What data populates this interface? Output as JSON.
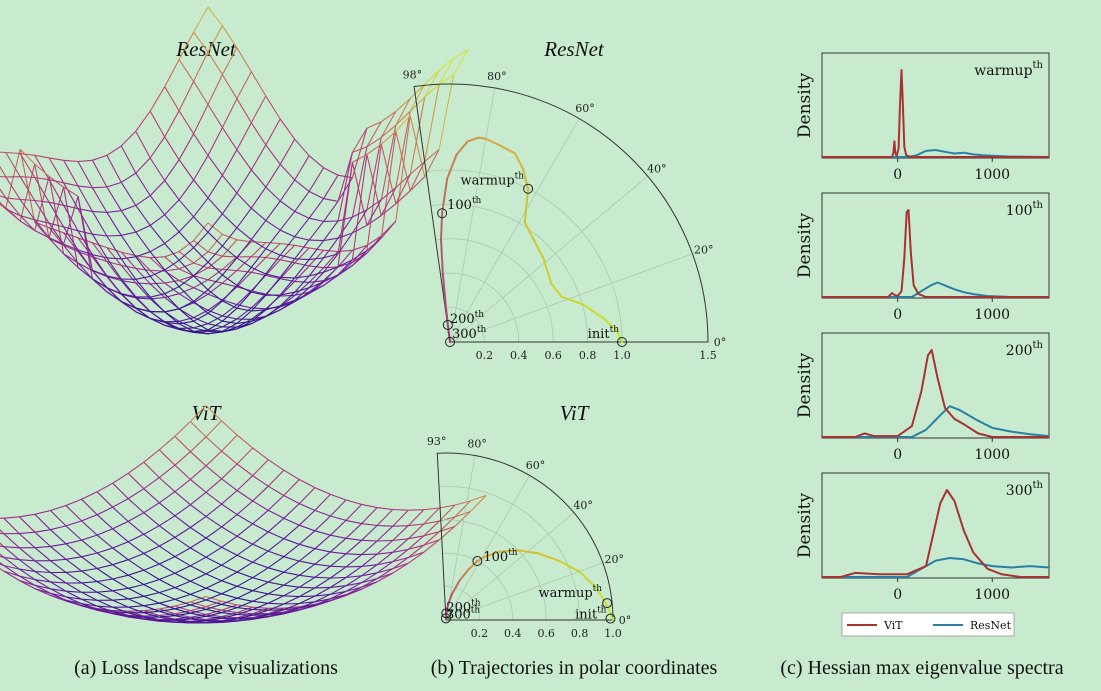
{
  "captions": {
    "a": "(a) Loss landscape visualizations",
    "b": "(b) Trajectories in polar coordinates",
    "c": "(c) Hessian max eigenvalue spectra"
  },
  "chart_data": [
    {
      "id": "landscape_resnet",
      "type": "surface",
      "title": "ResNet",
      "description_shape": "sharp, non-convex bowl with spikes"
    },
    {
      "id": "landscape_vit",
      "type": "surface",
      "title": "ViT",
      "description_shape": "smooth, convex bowl"
    },
    {
      "id": "polar_resnet",
      "type": "line",
      "subtype": "polar",
      "title": "ResNet",
      "theta_max_deg": 98,
      "r_max": 1.5,
      "angle_ticks": [
        "0°",
        "20°",
        "40°",
        "60°",
        "80°",
        "98°"
      ],
      "radial_ticks": [
        "0.2",
        "0.4",
        "0.6",
        "0.8",
        "1.0",
        "1.5"
      ],
      "trajectory": [
        {
          "theta": 0,
          "r": 1.0
        },
        {
          "theta": 4,
          "r": 0.97
        },
        {
          "theta": 9,
          "r": 0.9
        },
        {
          "theta": 16,
          "r": 0.8
        },
        {
          "theta": 22,
          "r": 0.7
        },
        {
          "theta": 30,
          "r": 0.68
        },
        {
          "theta": 42,
          "r": 0.73
        },
        {
          "theta": 58,
          "r": 0.82
        },
        {
          "theta": 63,
          "r": 1.0
        },
        {
          "theta": 67,
          "r": 1.09
        },
        {
          "theta": 71,
          "r": 1.16
        },
        {
          "theta": 76,
          "r": 1.18
        },
        {
          "theta": 80,
          "r": 1.2
        },
        {
          "theta": 82,
          "r": 1.2
        },
        {
          "theta": 85,
          "r": 1.17
        },
        {
          "theta": 88,
          "r": 1.09
        },
        {
          "theta": 91,
          "r": 0.95
        },
        {
          "theta": 93.5,
          "r": 0.75
        },
        {
          "theta": 95,
          "r": 0.6
        },
        {
          "theta": 96,
          "r": 0.4
        },
        {
          "theta": 96.8,
          "r": 0.2
        },
        {
          "theta": 97.5,
          "r": 0.06
        },
        {
          "theta": 98,
          "r": 0.0
        }
      ],
      "markers": [
        {
          "label": "init",
          "sup": "th",
          "theta": 0,
          "r": 1.0
        },
        {
          "label": "warmup",
          "sup": "th",
          "theta": 63,
          "r": 1.0
        },
        {
          "label": "100",
          "sup": "th",
          "theta": 93.5,
          "r": 0.75
        },
        {
          "label": "200",
          "sup": "th",
          "theta": 97.3,
          "r": 0.1
        },
        {
          "label": "300",
          "sup": "th",
          "theta": 98,
          "r": 0.0
        }
      ]
    },
    {
      "id": "polar_vit",
      "type": "line",
      "subtype": "polar",
      "title": "ViT",
      "theta_max_deg": 93,
      "r_max": 1.0,
      "angle_ticks": [
        "0°",
        "20°",
        "40°",
        "60°",
        "80°",
        "93°"
      ],
      "radial_ticks": [
        "0.2",
        "0.4",
        "0.6",
        "0.8",
        "1.0"
      ],
      "trajectory": [
        {
          "theta": 0,
          "r": 1.0
        },
        {
          "theta": 5,
          "r": 0.97
        },
        {
          "theta": 12,
          "r": 0.92
        },
        {
          "theta": 20,
          "r": 0.85
        },
        {
          "theta": 28,
          "r": 0.76
        },
        {
          "theta": 36,
          "r": 0.68
        },
        {
          "theta": 44,
          "r": 0.6
        },
        {
          "theta": 52,
          "r": 0.52
        },
        {
          "theta": 58,
          "r": 0.45
        },
        {
          "theta": 62,
          "r": 0.4
        },
        {
          "theta": 66,
          "r": 0.33
        },
        {
          "theta": 71,
          "r": 0.25
        },
        {
          "theta": 77,
          "r": 0.16
        },
        {
          "theta": 83,
          "r": 0.09
        },
        {
          "theta": 88,
          "r": 0.04
        },
        {
          "theta": 92,
          "r": 0.01
        }
      ],
      "markers": [
        {
          "label": "init",
          "sup": "th",
          "theta": 0.5,
          "r": 0.985
        },
        {
          "label": "warmup",
          "sup": "th",
          "theta": 6,
          "r": 0.97
        },
        {
          "label": "100",
          "sup": "th",
          "theta": 62,
          "r": 0.4
        },
        {
          "label": "200",
          "sup": "th",
          "theta": 87,
          "r": 0.04
        },
        {
          "label": "300",
          "sup": "th",
          "theta": 92,
          "r": 0.01
        }
      ]
    },
    {
      "id": "hessian_spectra",
      "type": "area",
      "subtype": "density",
      "ylabel": "Density",
      "xlim": [
        -800,
        1600
      ],
      "xticks": [
        0,
        1000
      ],
      "legend": [
        "ViT",
        "ResNet"
      ],
      "legend_position": "bottom",
      "colors": {
        "ViT": "#a83232",
        "ResNet": "#2a7fa5"
      },
      "panels": [
        {
          "label": "warmup",
          "sup": "th",
          "series": [
            {
              "name": "ViT",
              "points": [
                [
                  -800,
                  0
                ],
                [
                  -60,
                  0
                ],
                [
                  -45,
                  0.05
                ],
                [
                  -35,
                  0.18
                ],
                [
                  -25,
                  0.05
                ],
                [
                  -10,
                  0.01
                ],
                [
                  10,
                  0.1
                ],
                [
                  25,
                  0.6
                ],
                [
                  40,
                  1.0
                ],
                [
                  55,
                  0.6
                ],
                [
                  70,
                  0.12
                ],
                [
                  90,
                  0.02
                ],
                [
                  140,
                  0
                ],
                [
                  1600,
                  0
                ]
              ]
            },
            {
              "name": "ResNet",
              "points": [
                [
                  -800,
                  0
                ],
                [
                  100,
                  0
                ],
                [
                  200,
                  0.02
                ],
                [
                  300,
                  0.07
                ],
                [
                  400,
                  0.08
                ],
                [
                  500,
                  0.06
                ],
                [
                  600,
                  0.04
                ],
                [
                  700,
                  0.05
                ],
                [
                  800,
                  0.03
                ],
                [
                  900,
                  0.02
                ],
                [
                  1000,
                  0.015
                ],
                [
                  1200,
                  0.005
                ],
                [
                  1600,
                  0
                ]
              ]
            }
          ]
        },
        {
          "label": "100",
          "sup": "th",
          "series": [
            {
              "name": "ViT",
              "points": [
                [
                  -800,
                  0
                ],
                [
                  -100,
                  0
                ],
                [
                  -60,
                  0.04
                ],
                [
                  -30,
                  0.02
                ],
                [
                  0,
                  0.01
                ],
                [
                  40,
                  0.06
                ],
                [
                  70,
                  0.4
                ],
                [
                  95,
                  0.88
                ],
                [
                  115,
                  0.9
                ],
                [
                  140,
                  0.45
                ],
                [
                  170,
                  0.12
                ],
                [
                  220,
                  0.03
                ],
                [
                  300,
                  0
                ],
                [
                  1600,
                  0
                ]
              ]
            },
            {
              "name": "ResNet",
              "points": [
                [
                  -800,
                  0
                ],
                [
                  150,
                  0
                ],
                [
                  250,
                  0.06
                ],
                [
                  350,
                  0.12
                ],
                [
                  420,
                  0.15
                ],
                [
                  500,
                  0.12
                ],
                [
                  600,
                  0.08
                ],
                [
                  700,
                  0.05
                ],
                [
                  800,
                  0.03
                ],
                [
                  950,
                  0.01
                ],
                [
                  1200,
                  0
                ],
                [
                  1600,
                  0
                ]
              ]
            }
          ]
        },
        {
          "label": "200",
          "sup": "th",
          "series": [
            {
              "name": "ViT",
              "points": [
                [
                  -800,
                  0
                ],
                [
                  -450,
                  0
                ],
                [
                  -350,
                  0.02
                ],
                [
                  -250,
                  0.005
                ],
                [
                  0,
                  0.005
                ],
                [
                  150,
                  0.06
                ],
                [
                  250,
                  0.25
                ],
                [
                  320,
                  0.45
                ],
                [
                  360,
                  0.48
                ],
                [
                  420,
                  0.33
                ],
                [
                  500,
                  0.16
                ],
                [
                  600,
                  0.1
                ],
                [
                  700,
                  0.07
                ],
                [
                  850,
                  0.02
                ],
                [
                  1000,
                  0
                ],
                [
                  1600,
                  0
                ]
              ]
            },
            {
              "name": "ResNet",
              "points": [
                [
                  -800,
                  0
                ],
                [
                  150,
                  0
                ],
                [
                  300,
                  0.04
                ],
                [
                  450,
                  0.12
                ],
                [
                  550,
                  0.17
                ],
                [
                  650,
                  0.15
                ],
                [
                  750,
                  0.12
                ],
                [
                  850,
                  0.09
                ],
                [
                  1000,
                  0.05
                ],
                [
                  1200,
                  0.03
                ],
                [
                  1400,
                  0.015
                ],
                [
                  1600,
                  0.005
                ]
              ]
            }
          ]
        },
        {
          "label": "300",
          "sup": "th",
          "series": [
            {
              "name": "ViT",
              "points": [
                [
                  -800,
                  0
                ],
                [
                  -600,
                  0
                ],
                [
                  -450,
                  0.015
                ],
                [
                  -200,
                  0.01
                ],
                [
                  100,
                  0.01
                ],
                [
                  300,
                  0.04
                ],
                [
                  450,
                  0.27
                ],
                [
                  520,
                  0.32
                ],
                [
                  600,
                  0.28
                ],
                [
                  700,
                  0.17
                ],
                [
                  800,
                  0.09
                ],
                [
                  950,
                  0.03
                ],
                [
                  1100,
                  0.01
                ],
                [
                  1300,
                  0
                ],
                [
                  1600,
                  0
                ]
              ]
            },
            {
              "name": "ResNet",
              "points": [
                [
                  -800,
                  0
                ],
                [
                  100,
                  0
                ],
                [
                  250,
                  0.03
                ],
                [
                  400,
                  0.06
                ],
                [
                  550,
                  0.07
                ],
                [
                  700,
                  0.065
                ],
                [
                  850,
                  0.05
                ],
                [
                  1000,
                  0.04
                ],
                [
                  1200,
                  0.035
                ],
                [
                  1400,
                  0.04
                ],
                [
                  1600,
                  0.035
                ]
              ]
            }
          ]
        }
      ]
    }
  ]
}
